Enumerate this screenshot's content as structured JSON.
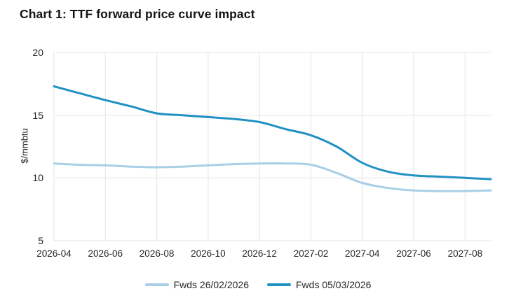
{
  "title": "Chart 1: TTF forward price curve impact",
  "chart_data": {
    "type": "line",
    "title": "Chart 1: TTF forward price curve impact",
    "xlabel": "",
    "ylabel": "$/mmbtu",
    "ylim": [
      5,
      20
    ],
    "y_ticks": [
      "5",
      "10",
      "15",
      "20"
    ],
    "grid": true,
    "legend_position": "bottom",
    "x": [
      "2026-04",
      "2026-05",
      "2026-06",
      "2026-07",
      "2026-08",
      "2026-09",
      "2026-10",
      "2026-11",
      "2026-12",
      "2027-01",
      "2027-02",
      "2027-03",
      "2027-04",
      "2027-05",
      "2027-06",
      "2027-07",
      "2027-08",
      "2027-09"
    ],
    "x_tick_labels": [
      "2026-04",
      "2026-06",
      "2026-08",
      "2026-10",
      "2026-12",
      "2027-02",
      "2027-04",
      "2027-06",
      "2027-08"
    ],
    "series": [
      {
        "name": "Fwds 26/02/2026",
        "color": "#a8cfe6",
        "values": [
          11.15,
          11.05,
          11.0,
          10.9,
          10.85,
          10.9,
          11.0,
          11.1,
          11.15,
          11.15,
          11.05,
          10.4,
          9.6,
          9.2,
          9.0,
          8.95,
          8.95,
          9.0
        ]
      },
      {
        "name": "Fwds 05/03/2026",
        "color": "#2191c4",
        "values": [
          17.3,
          16.75,
          16.2,
          15.7,
          15.15,
          15.0,
          14.85,
          14.7,
          14.45,
          13.9,
          13.4,
          12.5,
          11.2,
          10.5,
          10.2,
          10.1,
          10.0,
          9.9
        ]
      }
    ],
    "grid_color": "#e4e4e4"
  }
}
